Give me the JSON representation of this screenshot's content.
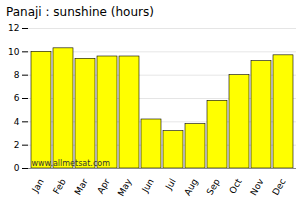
{
  "chart_data": {
    "type": "bar",
    "title": "Panaji : sunshine (hours)",
    "categories": [
      "Jan",
      "Feb",
      "Mar",
      "Apr",
      "May",
      "Jun",
      "Jul",
      "Aug",
      "Sep",
      "Oct",
      "Nov",
      "Dec"
    ],
    "values": [
      10.0,
      10.3,
      9.4,
      9.6,
      9.6,
      4.2,
      3.2,
      3.8,
      5.8,
      8.0,
      9.2,
      9.7
    ],
    "color": "#ffff00",
    "ylim": [
      0,
      12
    ],
    "yticks": [
      0,
      2,
      4,
      6,
      8,
      10,
      12
    ],
    "grid": true,
    "annotation": "www.allmetsat.com"
  }
}
